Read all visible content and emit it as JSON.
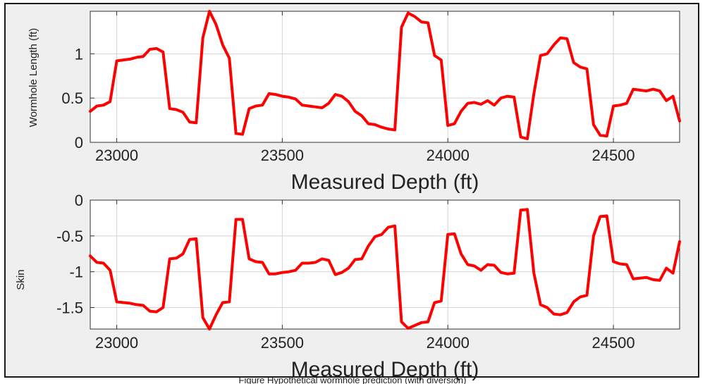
{
  "chart_data": [
    {
      "type": "line",
      "xlabel": "Measured Depth (ft)",
      "ylabel": "Wormhole Length (ft)",
      "xlim": [
        22920,
        24700
      ],
      "ylim": [
        0,
        1.48
      ],
      "xticks": [
        23000,
        23500,
        24000,
        24500
      ],
      "xtick_labels": [
        "23000",
        "23500",
        "24000",
        "24500"
      ],
      "yticks": [
        0,
        0.5,
        1
      ],
      "ytick_labels": [
        "0",
        "0.5",
        "1"
      ],
      "grid": true,
      "color": "#ff0000",
      "series": [
        {
          "x": [
            22920,
            22940,
            22960,
            22980,
            23000,
            23020,
            23040,
            23060,
            23080,
            23100,
            23120,
            23140,
            23160,
            23180,
            23200,
            23220,
            23240,
            23260,
            23280,
            23300,
            23320,
            23340,
            23360,
            23380,
            23400,
            23420,
            23440,
            23460,
            23480,
            23500,
            23520,
            23540,
            23560,
            23580,
            23600,
            23620,
            23640,
            23660,
            23680,
            23700,
            23720,
            23740,
            23760,
            23780,
            23800,
            23820,
            23840,
            23860,
            23880,
            23900,
            23920,
            23940,
            23960,
            23980,
            24000,
            24020,
            24040,
            24060,
            24080,
            24100,
            24120,
            24140,
            24160,
            24180,
            24200,
            24220,
            24240,
            24260,
            24280,
            24300,
            24320,
            24340,
            24360,
            24380,
            24400,
            24420,
            24440,
            24460,
            24480,
            24500,
            24520,
            24540,
            24560,
            24580,
            24600,
            24620,
            24640,
            24660,
            24680,
            24700
          ],
          "y": [
            0.35,
            0.41,
            0.42,
            0.46,
            0.92,
            0.93,
            0.94,
            0.96,
            0.97,
            1.05,
            1.06,
            1.02,
            0.38,
            0.37,
            0.34,
            0.23,
            0.22,
            1.18,
            1.48,
            1.33,
            1.1,
            0.95,
            0.1,
            0.09,
            0.38,
            0.41,
            0.42,
            0.55,
            0.54,
            0.52,
            0.51,
            0.49,
            0.42,
            0.41,
            0.4,
            0.39,
            0.44,
            0.54,
            0.52,
            0.46,
            0.35,
            0.3,
            0.21,
            0.2,
            0.17,
            0.15,
            0.14,
            1.3,
            1.46,
            1.42,
            1.36,
            1.35,
            0.98,
            0.93,
            0.19,
            0.21,
            0.35,
            0.44,
            0.45,
            0.43,
            0.47,
            0.42,
            0.5,
            0.52,
            0.51,
            0.06,
            0.04,
            0.55,
            0.98,
            1.0,
            1.1,
            1.18,
            1.17,
            0.9,
            0.85,
            0.83,
            0.2,
            0.08,
            0.07,
            0.41,
            0.42,
            0.44,
            0.6,
            0.59,
            0.58,
            0.6,
            0.58,
            0.47,
            0.52,
            0.24
          ]
        }
      ]
    },
    {
      "type": "line",
      "xlabel": "Measured Depth (ft)",
      "ylabel": "Skin",
      "xlim": [
        22920,
        24700
      ],
      "ylim": [
        -1.8,
        0
      ],
      "xticks": [
        23000,
        23500,
        24000,
        24500
      ],
      "xtick_labels": [
        "23000",
        "23500",
        "24000",
        "24500"
      ],
      "yticks": [
        0,
        -0.5,
        -1,
        -1.5
      ],
      "ytick_labels": [
        "0",
        "-0.5",
        "-1",
        "-1.5"
      ],
      "grid": true,
      "color": "#ff0000",
      "series": [
        {
          "x": [
            22920,
            22940,
            22960,
            22980,
            23000,
            23020,
            23040,
            23060,
            23080,
            23100,
            23120,
            23140,
            23160,
            23180,
            23200,
            23220,
            23240,
            23260,
            23280,
            23300,
            23320,
            23340,
            23360,
            23380,
            23400,
            23420,
            23440,
            23460,
            23480,
            23500,
            23520,
            23540,
            23560,
            23580,
            23600,
            23620,
            23640,
            23660,
            23680,
            23700,
            23720,
            23740,
            23760,
            23780,
            23800,
            23820,
            23840,
            23860,
            23880,
            23900,
            23920,
            23940,
            23960,
            23980,
            24000,
            24020,
            24040,
            24060,
            24080,
            24100,
            24120,
            24140,
            24160,
            24180,
            24200,
            24220,
            24240,
            24260,
            24280,
            24300,
            24320,
            24340,
            24360,
            24380,
            24400,
            24420,
            24440,
            24460,
            24480,
            24500,
            24520,
            24540,
            24560,
            24580,
            24600,
            24620,
            24640,
            24660,
            24680,
            24700
          ],
          "y": [
            -0.78,
            -0.87,
            -0.88,
            -0.98,
            -1.42,
            -1.43,
            -1.44,
            -1.46,
            -1.47,
            -1.55,
            -1.56,
            -1.5,
            -0.82,
            -0.81,
            -0.75,
            -0.55,
            -0.54,
            -1.64,
            -1.8,
            -1.6,
            -1.43,
            -1.42,
            -0.27,
            -0.27,
            -0.82,
            -0.86,
            -0.87,
            -1.03,
            -1.03,
            -1.01,
            -1.0,
            -0.98,
            -0.88,
            -0.88,
            -0.87,
            -0.82,
            -0.84,
            -1.04,
            -1.01,
            -0.95,
            -0.83,
            -0.82,
            -0.64,
            -0.51,
            -0.48,
            -0.38,
            -0.36,
            -1.7,
            -1.79,
            -1.75,
            -1.71,
            -1.7,
            -1.43,
            -1.41,
            -0.48,
            -0.47,
            -0.75,
            -0.9,
            -0.92,
            -0.98,
            -0.9,
            -0.91,
            -1.01,
            -1.03,
            -1.02,
            -0.14,
            -0.13,
            -1.02,
            -1.46,
            -1.5,
            -1.59,
            -1.6,
            -1.57,
            -1.42,
            -1.35,
            -1.33,
            -0.5,
            -0.23,
            -0.22,
            -0.86,
            -0.89,
            -0.9,
            -1.1,
            -1.09,
            -1.08,
            -1.11,
            -1.12,
            -0.95,
            -1.02,
            -0.58
          ]
        }
      ]
    }
  ],
  "caption": "Figure    Hypothetical wormhole prediction (with diversion)"
}
